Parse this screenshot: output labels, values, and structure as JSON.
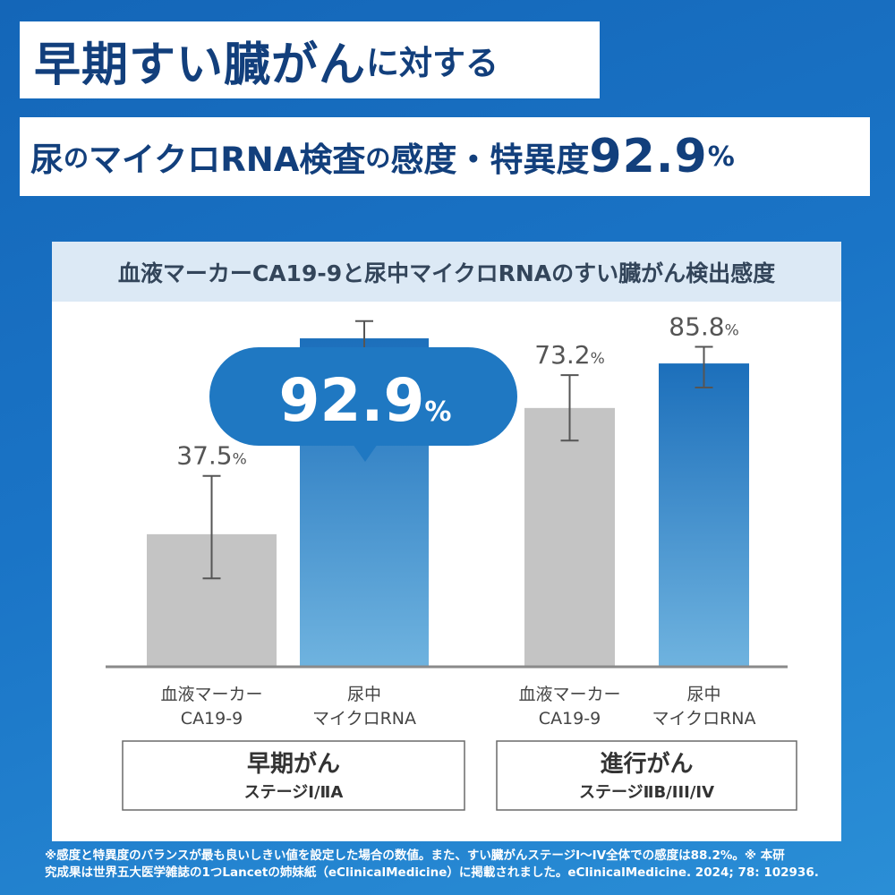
{
  "title_line1": {
    "main": "早期すい臓がん",
    "suffix": "に対する"
  },
  "title_line2": {
    "part1": "尿",
    "part2": "の",
    "part3": "マイクロRNA検査",
    "part4": "の",
    "part5": "感度・特異度",
    "number": "92.9",
    "unit": "%"
  },
  "panel_title": "血液マーカーCA19-9と尿中マイクロRNAのすい臓がん検出感度",
  "chart_data": {
    "type": "bar",
    "title": "血液マーカーCA19-9と尿中マイクロRNAのすい臓がん検出感度",
    "ylim": [
      0,
      100
    ],
    "grid": false,
    "groups": [
      {
        "name": "早期がん",
        "subtitle": "ステージⅠ/ⅡA"
      },
      {
        "name": "進行がん",
        "subtitle": "ステージⅡB/III/IV"
      }
    ],
    "bars": [
      {
        "group": 0,
        "label_lines": [
          "血液マーカー",
          "CA19-9"
        ],
        "value": 37.5,
        "value_label": "37.5",
        "err_low": 25.0,
        "err_high": 54.0,
        "color": "#c4c4c4"
      },
      {
        "group": 0,
        "label_lines": [
          "尿中",
          "マイクロRNA"
        ],
        "value": 92.9,
        "value_label": "",
        "err_low": 79.0,
        "err_high": 97.8,
        "color": "#2f86c9"
      },
      {
        "group": 1,
        "label_lines": [
          "血液マーカー",
          "CA19-9"
        ],
        "value": 73.2,
        "value_label": "73.2",
        "err_low": 64.0,
        "err_high": 82.5,
        "color": "#c4c4c4"
      },
      {
        "group": 1,
        "label_lines": [
          "尿中",
          "マイクロRNA"
        ],
        "value": 85.8,
        "value_label": "85.8",
        "err_low": 79.0,
        "err_high": 90.5,
        "color": "#2f86c9"
      }
    ],
    "unit": "%",
    "callout": {
      "value": "92.9",
      "unit": "%"
    }
  },
  "footnote": [
    "※感度と特異度のバランスが最も良いしきい値を設定した場合の数値。また、すい臓がんステージⅠ〜IV全体での感度は88.2%。※ 本研",
    "究成果は世界五大医学雑誌の1つLancetの姉妹紙（eClinicalMedicine）に掲載されました。eClinicalMedicine. 2024; 78: 102936."
  ],
  "colors": {
    "background": "#1a74c6",
    "title_text": "#123f7c",
    "blue_bar": "#2f86c9",
    "gray_bar": "#c4c4c4",
    "callout": "#1f78c2",
    "panel_header": "#dce9f5"
  }
}
